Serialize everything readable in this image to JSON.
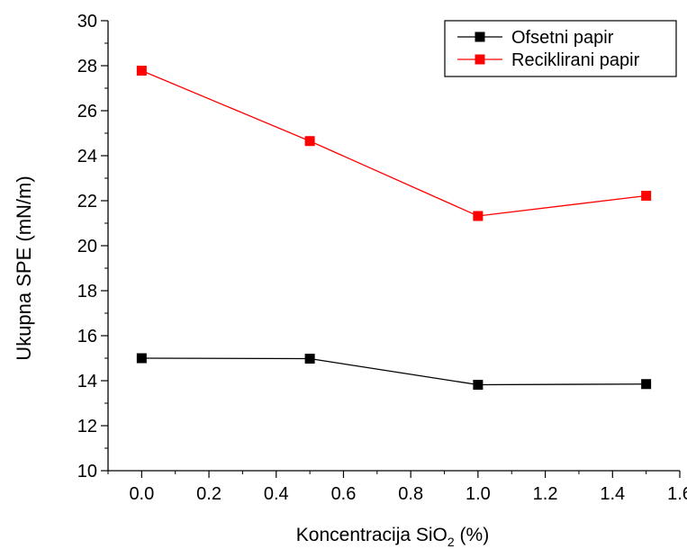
{
  "chart_data": {
    "type": "line",
    "xlabel_main": "Koncentracija SiO",
    "xlabel_sub": "2",
    "xlabel_tail": " (%)",
    "ylabel": "Ukupna SPE (mN/m)",
    "xlim": [
      -0.1,
      1.6
    ],
    "ylim": [
      10,
      30
    ],
    "xticks": [
      0.0,
      0.2,
      0.4,
      0.6,
      0.8,
      1.0,
      1.2,
      1.4,
      1.6
    ],
    "xtick_labels": [
      "0.0",
      "0.2",
      "0.4",
      "0.6",
      "0.8",
      "1.0",
      "1.2",
      "1.4",
      "1.6"
    ],
    "yticks": [
      10,
      12,
      14,
      16,
      18,
      20,
      22,
      24,
      26,
      28,
      30
    ],
    "ytick_labels": [
      "10",
      "12",
      "14",
      "16",
      "18",
      "20",
      "22",
      "24",
      "26",
      "28",
      "30"
    ],
    "legend_position": "top-right",
    "grid": false,
    "series": [
      {
        "name": "Ofsetni papir",
        "color": "#000000",
        "marker": "square",
        "x": [
          0.0,
          0.5,
          1.0,
          1.5
        ],
        "y": [
          15.0,
          14.98,
          13.82,
          13.85
        ]
      },
      {
        "name": "Reciklirani papir",
        "color": "#ff0000",
        "marker": "square",
        "x": [
          0.0,
          0.5,
          1.0,
          1.5
        ],
        "y": [
          27.78,
          24.65,
          21.32,
          22.22
        ]
      }
    ]
  }
}
